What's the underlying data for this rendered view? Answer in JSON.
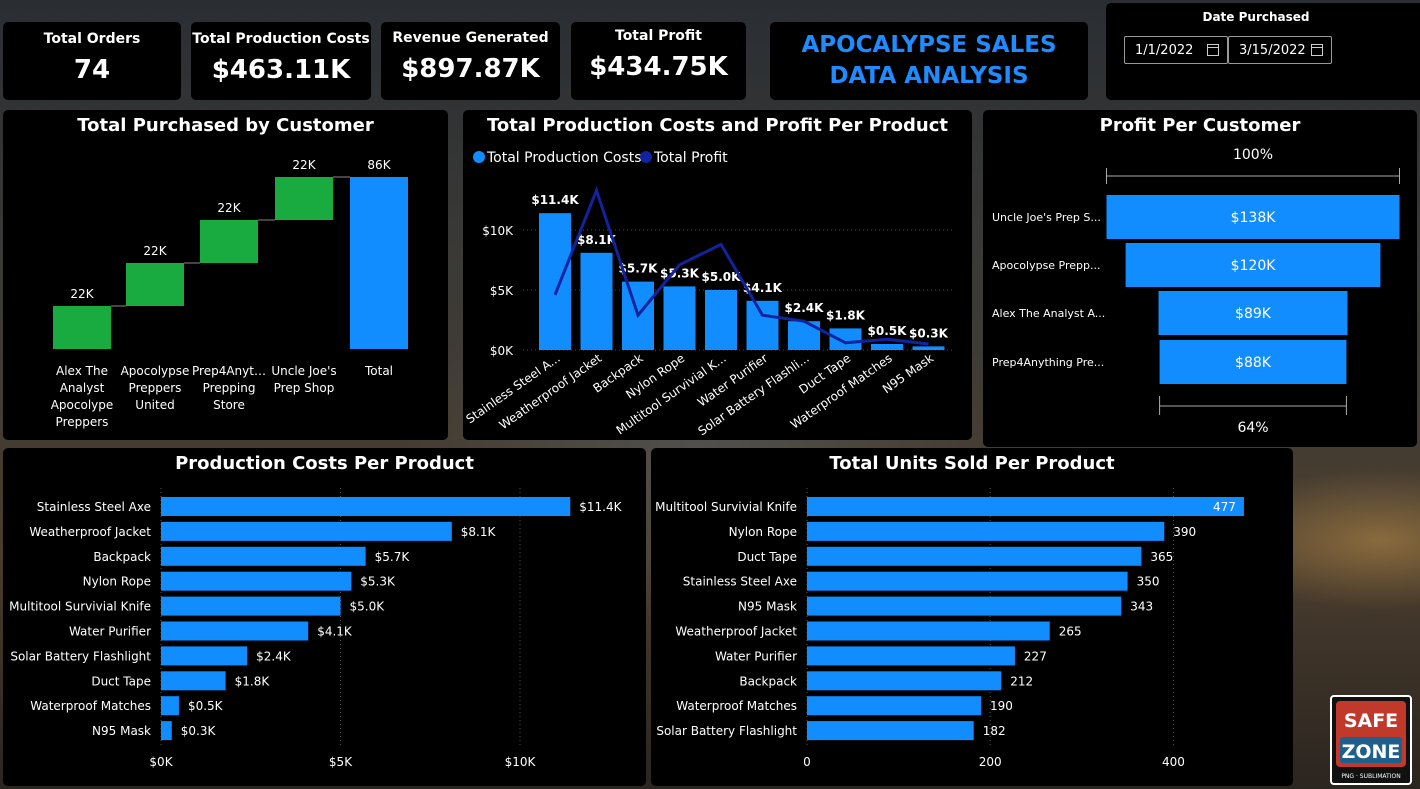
{
  "kpis": [
    {
      "label": "Total Orders",
      "value": "74"
    },
    {
      "label": "Total Production Costs",
      "value": "$463.11K"
    },
    {
      "label": "Revenue Generated",
      "value": "$897.87K"
    },
    {
      "label": "Total Profit",
      "value": "$434.75K"
    }
  ],
  "report_title": {
    "line1": "APOCALYPSE SALES",
    "line2": "DATA ANALYSIS"
  },
  "date_filter": {
    "label": "Date Purchased",
    "start": "1/1/2022",
    "end": "3/15/2022"
  },
  "logo": {
    "line1": "SAFE",
    "line2": "ZONE",
    "tag": "PNG · SUBLIMATION"
  },
  "colors": {
    "blue": "#118dff",
    "green": "#1aab40",
    "navy": "#12239e",
    "accent": "#1f8bff"
  },
  "chart_data": [
    {
      "type": "bar",
      "subtype": "waterfall",
      "title": "Total Purchased by Customer",
      "categories": [
        "Alex The Analyst Apocolype Preppers",
        "Apocolypse Preppers United",
        "Prep4Anyt… Prepping Store",
        "Uncle Joe's Prep Shop",
        "Total"
      ],
      "category_lines": [
        [
          "Alex The",
          "Analyst",
          "Apocolype",
          "Preppers"
        ],
        [
          "Apocolypse",
          "Preppers",
          "United"
        ],
        [
          "Prep4Anyt…",
          "Prepping",
          "Store"
        ],
        [
          "Uncle Joe's",
          "Prep Shop"
        ],
        [
          "Total"
        ]
      ],
      "values": [
        21.5,
        21.5,
        21.5,
        21.5,
        86
      ],
      "labels": [
        "22K",
        "22K",
        "22K",
        "22K",
        "86K"
      ],
      "ylim": [
        0,
        86
      ]
    },
    {
      "type": "bar",
      "subtype": "combo bar + line",
      "title": "Total Production Costs and Profit Per Product",
      "legend": [
        "Total Production Costs",
        "Total Profit"
      ],
      "categories": [
        "Stainless Steel A...",
        "Weatherproof Jacket",
        "Backpack",
        "Nylon Rope",
        "Multitool Survivial K...",
        "Water Purifier",
        "Solar Battery Flashli...",
        "Duct Tape",
        "Waterproof Matches",
        "N95 Mask"
      ],
      "series": [
        {
          "name": "Total Production Costs",
          "values": [
            11.4,
            8.1,
            5.7,
            5.3,
            5.0,
            4.1,
            2.4,
            1.8,
            0.5,
            0.3
          ],
          "labels": [
            "$11.4K",
            "$8.1K",
            "$5.7K",
            "$5.3K",
            "$5.0K",
            "$4.1K",
            "$2.4K",
            "$1.8K",
            "$0.5K",
            "$0.3K"
          ]
        },
        {
          "name": "Total Profit",
          "values": [
            4.6,
            13.3,
            2.9,
            7.1,
            8.8,
            2.9,
            2.4,
            0.6,
            0.9,
            0.5
          ]
        }
      ],
      "yticks": [
        "$0K",
        "$5K",
        "$10K"
      ],
      "ylim": [
        0,
        13.5
      ]
    },
    {
      "type": "bar",
      "subtype": "funnel",
      "title": "Profit Per Customer",
      "categories": [
        "Uncle Joe's Prep S...",
        "Apocolypse Prepp...",
        "Alex The Analyst A...",
        "Prep4Anything Pre..."
      ],
      "values": [
        138,
        120,
        89,
        88
      ],
      "labels": [
        "$138K",
        "$120K",
        "$89K",
        "$88K"
      ],
      "top_pct": "100%",
      "bottom_pct": "64%"
    },
    {
      "type": "bar",
      "orientation": "horizontal",
      "title": "Production Costs Per Product",
      "categories": [
        "Stainless Steel Axe",
        "Weatherproof Jacket",
        "Backpack",
        "Nylon Rope",
        "Multitool Survivial Knife",
        "Water Purifier",
        "Solar Battery Flashlight",
        "Duct Tape",
        "Waterproof Matches",
        "N95 Mask"
      ],
      "values": [
        11.4,
        8.1,
        5.7,
        5.3,
        5.0,
        4.1,
        2.4,
        1.8,
        0.5,
        0.3
      ],
      "labels": [
        "$11.4K",
        "$8.1K",
        "$5.7K",
        "$5.3K",
        "$5.0K",
        "$4.1K",
        "$2.4K",
        "$1.8K",
        "$0.5K",
        "$0.3K"
      ],
      "xticks": [
        "$0K",
        "$5K",
        "$10K"
      ],
      "xlim": [
        0,
        13.3
      ]
    },
    {
      "type": "bar",
      "orientation": "horizontal",
      "title": "Total Units Sold Per Product",
      "categories": [
        "Multitool Survivial Knife",
        "Nylon Rope",
        "Duct Tape",
        "Stainless Steel Axe",
        "N95 Mask",
        "Weatherproof Jacket",
        "Water Purifier",
        "Backpack",
        "Waterproof Matches",
        "Solar Battery Flashlight"
      ],
      "values": [
        477,
        390,
        365,
        350,
        343,
        265,
        227,
        212,
        190,
        182
      ],
      "labels": [
        "477",
        "390",
        "365",
        "350",
        "343",
        "265",
        "227",
        "212",
        "190",
        "182"
      ],
      "xticks": [
        "0",
        "200",
        "400"
      ],
      "xlim": [
        0,
        480
      ]
    }
  ]
}
